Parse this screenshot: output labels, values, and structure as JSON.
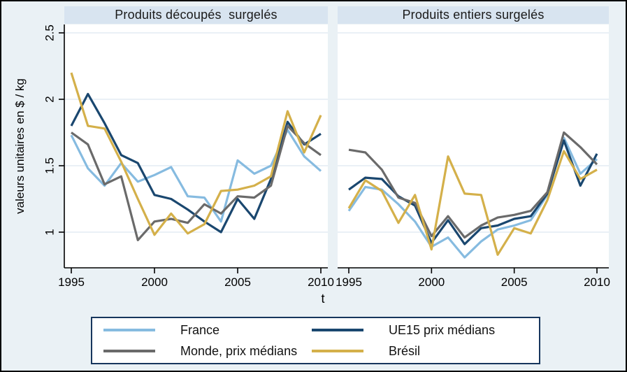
{
  "figure": {
    "background": "#eaf1f5",
    "band_background": "#d8e4f0",
    "plot_background": "#ffffff",
    "gridline_color": "#e3ecf4",
    "axis_color": "#000000",
    "legend_border_color": "#17365d"
  },
  "y_axis": {
    "title": "valeurs unitaires en $ / kg",
    "tick_labels": [
      "1",
      "1.5",
      "2",
      "2.5"
    ]
  },
  "x_axis": {
    "title": "t",
    "tick_labels": [
      "1995",
      "2000",
      "2005",
      "2010"
    ]
  },
  "chart_data": {
    "type": "line",
    "x": [
      1995,
      1996,
      1997,
      1998,
      1999,
      2000,
      2001,
      2002,
      2003,
      2004,
      2005,
      2006,
      2007,
      2008,
      2009,
      2010
    ],
    "x_ticks": [
      1995,
      2000,
      2005,
      2010
    ],
    "y_ticks": [
      1,
      1.5,
      2,
      2.5
    ],
    "xlim": [
      1994.6,
      2010.4
    ],
    "ylim": [
      0.73,
      2.56
    ],
    "grid": true,
    "legend_position": "bottom",
    "ylabel": "valeurs unitaires en $ / kg",
    "xlabel": "t",
    "panels": [
      {
        "title": "Produits découpés  surgelés",
        "series": [
          {
            "name": "France",
            "color": "#86bbe0",
            "values": [
              1.73,
              1.48,
              1.35,
              1.52,
              1.38,
              1.43,
              1.49,
              1.27,
              1.26,
              1.08,
              1.54,
              1.44,
              1.5,
              1.77,
              1.57,
              1.46
            ]
          },
          {
            "name": "UE15 prix médians",
            "color": "#1a476f",
            "values": [
              1.8,
              2.04,
              1.82,
              1.58,
              1.52,
              1.28,
              1.25,
              1.17,
              1.08,
              1.0,
              1.25,
              1.1,
              1.4,
              1.83,
              1.66,
              1.74
            ]
          },
          {
            "name": "Monde, prix médians",
            "color": "#6a6a6a",
            "values": [
              1.75,
              1.66,
              1.36,
              1.42,
              0.94,
              1.08,
              1.1,
              1.07,
              1.21,
              1.14,
              1.27,
              1.26,
              1.35,
              1.8,
              1.67,
              1.58
            ]
          },
          {
            "name": "Brésil",
            "color": "#d4b04a",
            "values": [
              2.2,
              1.8,
              1.78,
              1.53,
              1.25,
              0.98,
              1.14,
              0.99,
              1.06,
              1.31,
              1.32,
              1.35,
              1.42,
              1.91,
              1.6,
              1.88
            ]
          }
        ]
      },
      {
        "title": "Produits entiers surgelés",
        "series": [
          {
            "name": "France",
            "color": "#86bbe0",
            "values": [
              1.16,
              1.34,
              1.32,
              1.21,
              1.08,
              0.89,
              0.96,
              0.81,
              0.93,
              1.02,
              1.05,
              1.09,
              1.28,
              1.71,
              1.44,
              1.55
            ]
          },
          {
            "name": "UE15 prix médians",
            "color": "#1a476f",
            "values": [
              1.32,
              1.41,
              1.4,
              1.27,
              1.2,
              0.92,
              1.09,
              0.91,
              1.03,
              1.05,
              1.1,
              1.12,
              1.29,
              1.69,
              1.35,
              1.59
            ]
          },
          {
            "name": "Monde, prix médians",
            "color": "#6a6a6a",
            "values": [
              1.62,
              1.6,
              1.47,
              1.26,
              1.22,
              0.97,
              1.12,
              0.96,
              1.05,
              1.11,
              1.13,
              1.16,
              1.3,
              1.75,
              1.64,
              1.51
            ]
          },
          {
            "name": "Brésil",
            "color": "#d4b04a",
            "values": [
              1.18,
              1.39,
              1.31,
              1.07,
              1.28,
              0.87,
              1.57,
              1.29,
              1.28,
              0.83,
              1.03,
              0.99,
              1.24,
              1.61,
              1.4,
              1.47
            ]
          }
        ]
      }
    ]
  },
  "legend": {
    "items": [
      {
        "label": "France",
        "color": "#86bbe0"
      },
      {
        "label": "UE15 prix médians",
        "color": "#1a476f"
      },
      {
        "label": "Monde, prix médians",
        "color": "#6a6a6a"
      },
      {
        "label": "Brésil",
        "color": "#d4b04a"
      }
    ]
  }
}
